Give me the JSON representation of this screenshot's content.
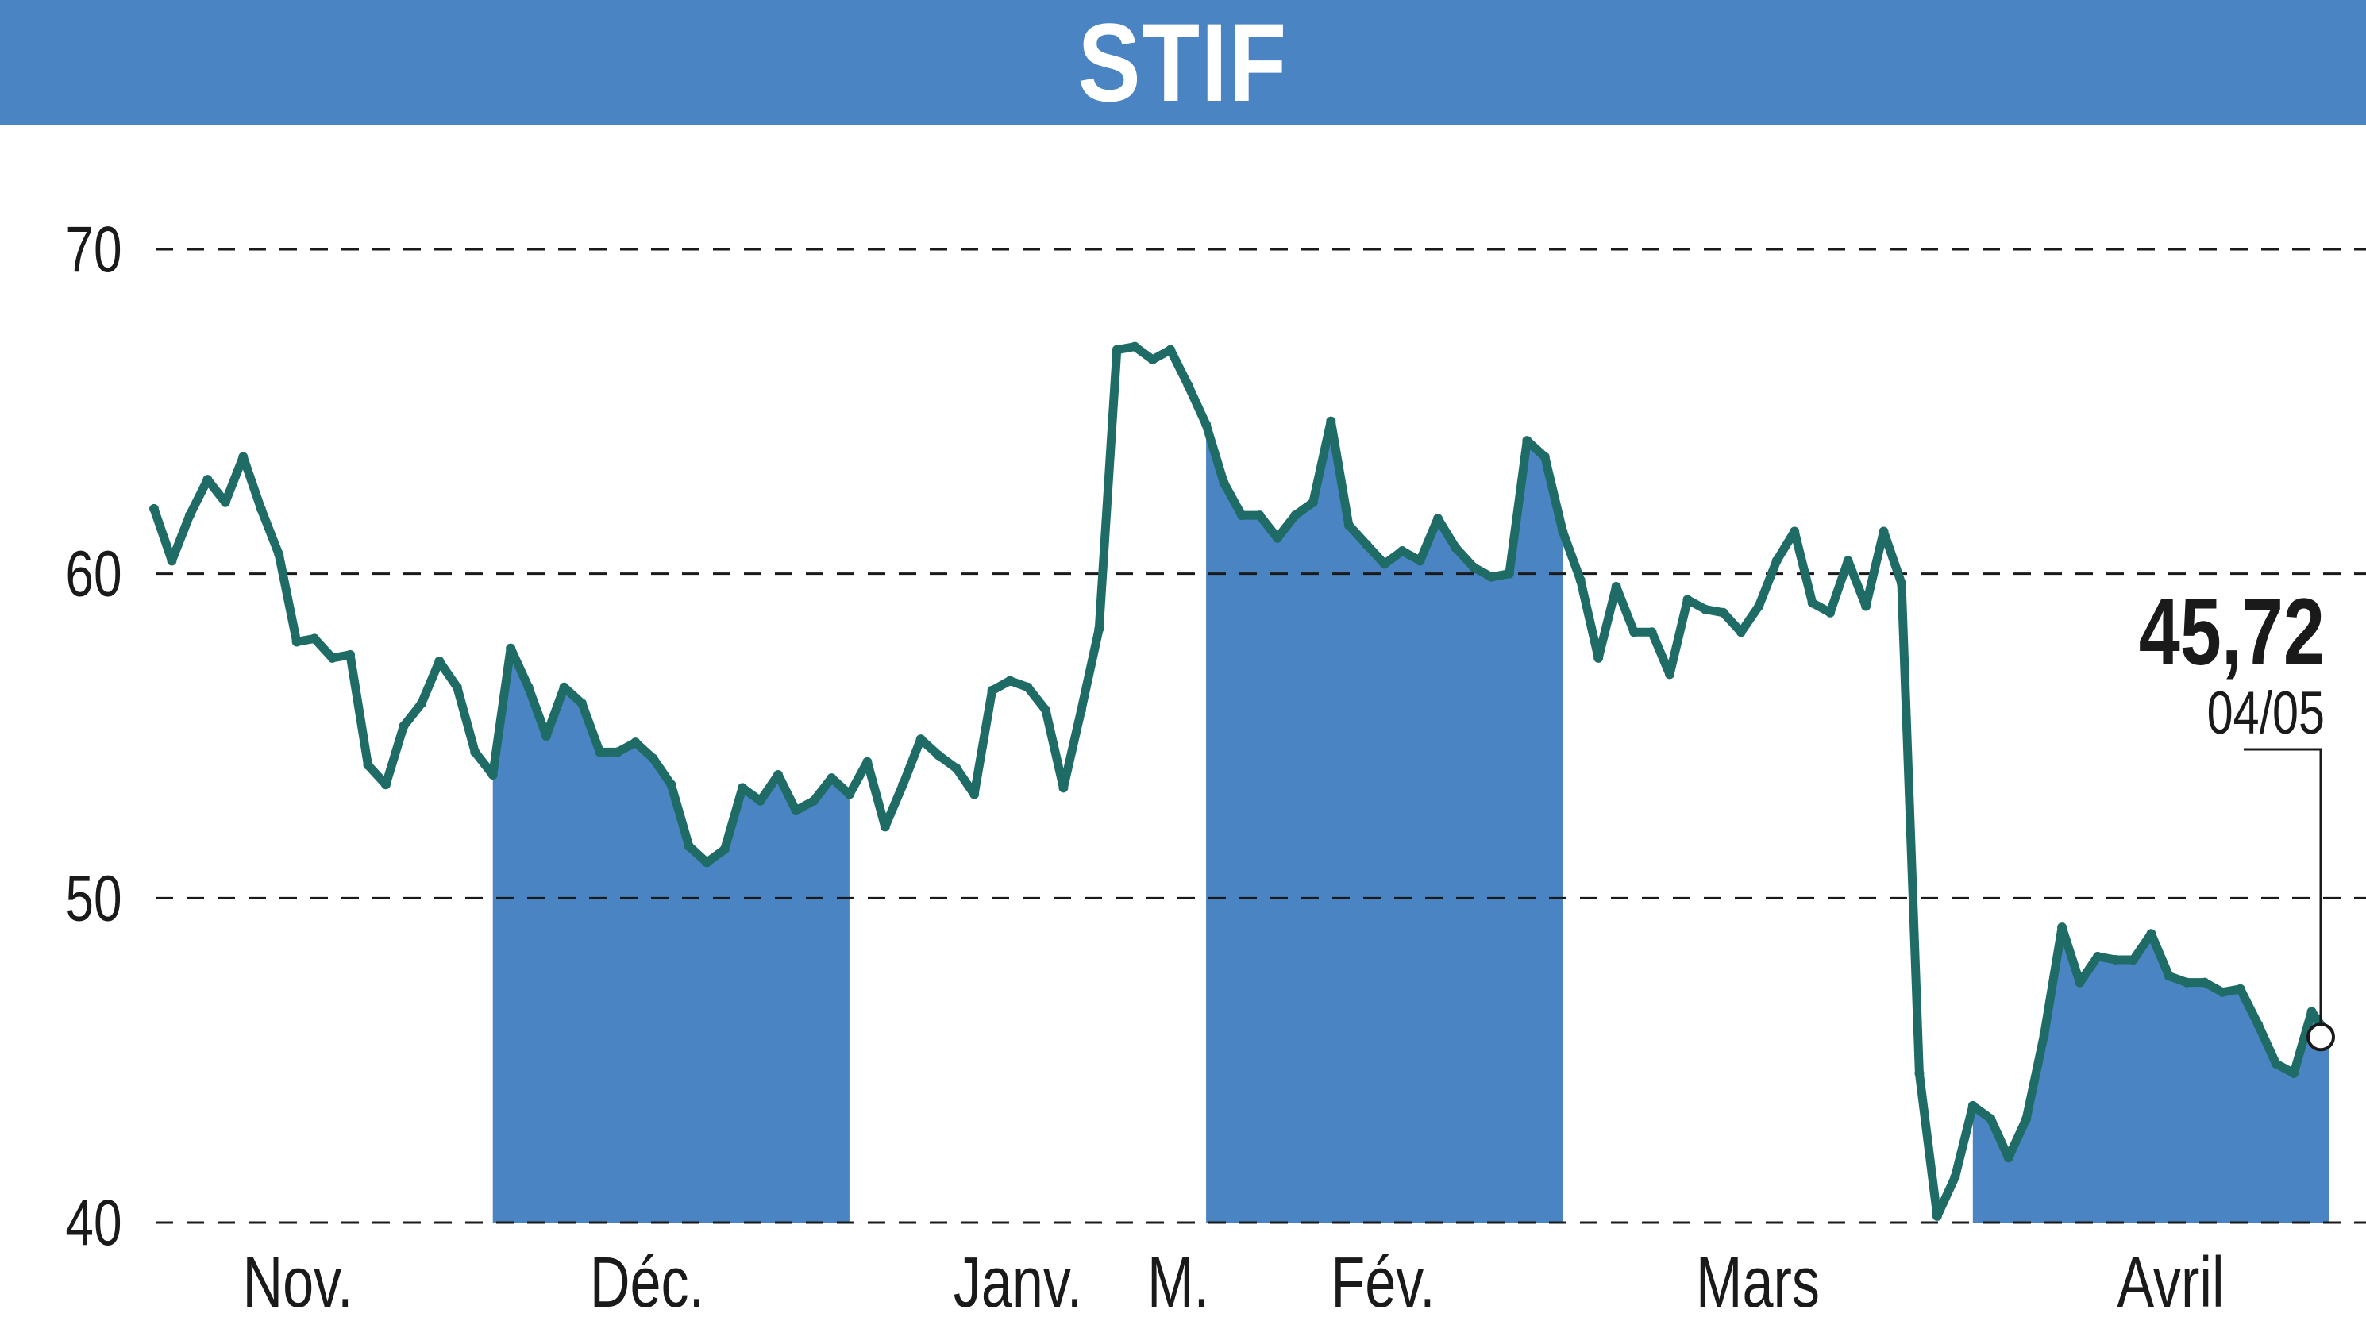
{
  "colors": {
    "header": "#4a84c3",
    "area": "#4a84c3",
    "line": "#1f6b66",
    "grid": "#1a1a1a"
  },
  "title": "STIF",
  "chart_data": {
    "type": "line",
    "title": "STIF",
    "ylim": [
      40,
      70
    ],
    "yticks": [
      "70",
      "60",
      "50",
      "40"
    ],
    "grid": "horizontal dashed",
    "xlabels": [
      "Nov.",
      "Déc.",
      "Janv.",
      "M.",
      "Fév.",
      "Mars",
      "Avril"
    ],
    "shaded_months": [
      "Déc.",
      "Fév.",
      "Avril"
    ],
    "last_value": "45,72",
    "last_date": "04/05",
    "series": [
      {
        "values": [
          62.0,
          60.4,
          61.8,
          62.9,
          62.2,
          63.6,
          62.0,
          60.6,
          57.9,
          58.0,
          57.4,
          57.5,
          54.1,
          53.5,
          55.3,
          56.0,
          57.3,
          56.5,
          54.5,
          53.8,
          57.7,
          56.5,
          55.0,
          56.5,
          56.0,
          54.5,
          54.5,
          54.8,
          54.3,
          53.5,
          51.6,
          51.1,
          51.5,
          53.4,
          53.0,
          53.8,
          52.7,
          53.0,
          53.7,
          53.2,
          54.2,
          52.2,
          53.5,
          54.9,
          54.4,
          54.0,
          53.2,
          56.4,
          56.7,
          56.5,
          55.8,
          53.4,
          55.8,
          58.3,
          66.9,
          67.0,
          66.6,
          66.9,
          65.8,
          64.6,
          62.8,
          61.8,
          61.8,
          61.1,
          61.8,
          62.2,
          64.7,
          61.5,
          60.9,
          60.3,
          60.7,
          60.4,
          61.7,
          60.8,
          60.2,
          59.9,
          60.0,
          64.1,
          63.6,
          61.3,
          59.8,
          57.4,
          59.6,
          58.2,
          58.2,
          56.9,
          59.2,
          58.9,
          58.8,
          58.2,
          59.0,
          60.4,
          61.3,
          59.1,
          58.8,
          60.4,
          59.0,
          61.3,
          59.7,
          44.6,
          40.2,
          41.4,
          43.6,
          43.2,
          42.0,
          43.2,
          45.8,
          49.1,
          47.4,
          48.2,
          48.1,
          48.1,
          48.9,
          47.6,
          47.4,
          47.4,
          47.1,
          47.2,
          46.1,
          44.9,
          44.6,
          46.5,
          45.72
        ]
      }
    ]
  }
}
